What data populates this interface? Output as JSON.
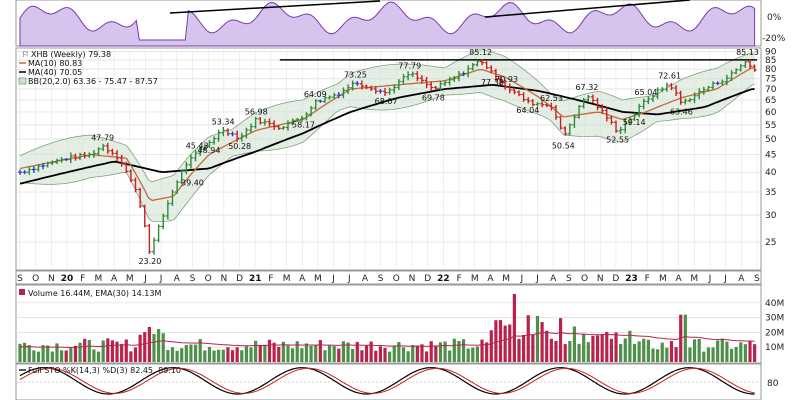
{
  "chart_data": {
    "type": "ohlc-weekly",
    "legend": {
      "title": "XHB (Weekly) 79.38",
      "ma10": "MA(10) 80.83",
      "ma40": "MA(40) 70.05",
      "bb": "BB(20,2.0) 63.36 - 75.47 - 87.57",
      "volume": "Volume 16.44M, EMA(30) 14.13M",
      "sto": "Full STO %K(14,3) %D(3) 82.45, 89.10"
    },
    "price_axis": {
      "scale": "log",
      "range": [
        21,
        91
      ],
      "ticks": [
        25,
        30,
        35,
        40,
        45,
        50,
        55,
        60,
        65,
        70,
        75,
        80,
        85,
        90
      ]
    },
    "volume_axis": {
      "range": [
        0,
        50
      ],
      "ticks": [
        "10M",
        "20M",
        "30M",
        "40M"
      ],
      "tick_values": [
        10,
        20,
        30,
        40
      ]
    },
    "rsi_axis": {
      "ticks": [
        "0%",
        "-20%"
      ]
    },
    "sto_axis": {
      "ticks": [
        "80"
      ]
    },
    "x_labels": [
      "S",
      "O",
      "N",
      "20",
      "F",
      "M",
      "A",
      "M",
      "J",
      "J",
      "A",
      "S",
      "O",
      "N",
      "D",
      "21",
      "F",
      "M",
      "A",
      "M",
      "J",
      "J",
      "A",
      "S",
      "O",
      "N",
      "D",
      "22",
      "F",
      "M",
      "A",
      "M",
      "J",
      "J",
      "A",
      "S",
      "O",
      "N",
      "D",
      "23",
      "F",
      "M",
      "A",
      "M",
      "J",
      "J",
      "A",
      "S"
    ],
    "x_label_is_year": [
      false,
      false,
      false,
      true,
      false,
      false,
      false,
      false,
      false,
      false,
      false,
      false,
      false,
      false,
      false,
      true,
      false,
      false,
      false,
      false,
      false,
      false,
      false,
      false,
      false,
      false,
      false,
      true,
      false,
      false,
      false,
      false,
      false,
      false,
      false,
      false,
      false,
      false,
      false,
      true,
      false,
      false,
      false,
      false,
      false,
      false,
      false,
      false
    ],
    "anchors": [
      {
        "m": 0,
        "v": 40
      },
      {
        "m": 2,
        "v": 44
      },
      {
        "m": 3,
        "v": 45
      },
      {
        "m": 3.5,
        "v": 47.79
      },
      {
        "m": 4.2,
        "v": 44
      },
      {
        "m": 5,
        "v": 34
      },
      {
        "m": 5.5,
        "v": 23.2
      },
      {
        "m": 6,
        "v": 29
      },
      {
        "m": 6.6,
        "v": 37
      },
      {
        "m": 7,
        "v": 42
      },
      {
        "m": 7.5,
        "v": 45.43
      },
      {
        "m": 8,
        "v": 48.94
      },
      {
        "m": 8.6,
        "v": 53.34
      },
      {
        "m": 9.3,
        "v": 50.28
      },
      {
        "m": 10,
        "v": 56.98
      },
      {
        "m": 11,
        "v": 54
      },
      {
        "m": 12,
        "v": 58.17
      },
      {
        "m": 12.5,
        "v": 64.09
      },
      {
        "m": 13.5,
        "v": 68
      },
      {
        "m": 14.2,
        "v": 73.25
      },
      {
        "m": 15.5,
        "v": 68.07
      },
      {
        "m": 16.5,
        "v": 77.79
      },
      {
        "m": 17.5,
        "v": 69.78
      },
      {
        "m": 18.5,
        "v": 76
      },
      {
        "m": 19.5,
        "v": 85.12
      },
      {
        "m": 20,
        "v": 77.38
      },
      {
        "m": 20.6,
        "v": 70.93
      },
      {
        "m": 21.5,
        "v": 64.04
      },
      {
        "m": 22.5,
        "v": 62.53
      },
      {
        "m": 23,
        "v": 50.54
      },
      {
        "m": 24,
        "v": 67.32
      },
      {
        "m": 25.3,
        "v": 52.55
      },
      {
        "m": 26,
        "v": 59.14
      },
      {
        "m": 26.5,
        "v": 65.04
      },
      {
        "m": 27.5,
        "v": 72.61
      },
      {
        "m": 28,
        "v": 63.46
      },
      {
        "m": 29,
        "v": 70
      },
      {
        "m": 30,
        "v": 76
      },
      {
        "m": 30.8,
        "v": 85.13
      },
      {
        "m": 31,
        "v": 79.38
      }
    ],
    "ma10_anchors": [
      {
        "m": 0,
        "v": 41
      },
      {
        "m": 3,
        "v": 45
      },
      {
        "m": 4.5,
        "v": 44
      },
      {
        "m": 5.5,
        "v": 33
      },
      {
        "m": 6.5,
        "v": 34
      },
      {
        "m": 8,
        "v": 45
      },
      {
        "m": 10,
        "v": 53
      },
      {
        "m": 12,
        "v": 57
      },
      {
        "m": 14,
        "v": 70
      },
      {
        "m": 16,
        "v": 72
      },
      {
        "m": 18,
        "v": 74
      },
      {
        "m": 19.5,
        "v": 80
      },
      {
        "m": 20.5,
        "v": 76
      },
      {
        "m": 22,
        "v": 66
      },
      {
        "m": 23,
        "v": 58
      },
      {
        "m": 24.5,
        "v": 60
      },
      {
        "m": 25.5,
        "v": 57
      },
      {
        "m": 26.5,
        "v": 60
      },
      {
        "m": 28,
        "v": 66
      },
      {
        "m": 29.5,
        "v": 70
      },
      {
        "m": 31,
        "v": 80.83
      }
    ],
    "ma40_anchors": [
      {
        "m": 0,
        "v": 37
      },
      {
        "m": 4,
        "v": 43
      },
      {
        "m": 6,
        "v": 40
      },
      {
        "m": 8,
        "v": 41
      },
      {
        "m": 10,
        "v": 46
      },
      {
        "m": 12,
        "v": 52
      },
      {
        "m": 14,
        "v": 60
      },
      {
        "m": 16,
        "v": 66
      },
      {
        "m": 18,
        "v": 70
      },
      {
        "m": 20,
        "v": 72
      },
      {
        "m": 22,
        "v": 69
      },
      {
        "m": 24,
        "v": 64
      },
      {
        "m": 25.5,
        "v": 60
      },
      {
        "m": 27,
        "v": 59
      },
      {
        "m": 29,
        "v": 62
      },
      {
        "m": 31,
        "v": 70.05
      }
    ],
    "annotations": [
      {
        "text": "47.79",
        "m": 3.5,
        "v": 47.79,
        "pos": "above"
      },
      {
        "text": "23.20",
        "m": 5.5,
        "v": 23.2,
        "pos": "below"
      },
      {
        "text": "45.43",
        "m": 7.5,
        "v": 45.43,
        "pos": "above"
      },
      {
        "text": "39.40",
        "m": 7.3,
        "v": 39.4,
        "pos": "below"
      },
      {
        "text": "53.34",
        "m": 8.6,
        "v": 53.34,
        "pos": "above"
      },
      {
        "text": "48.94",
        "m": 8.0,
        "v": 48.94,
        "pos": "below"
      },
      {
        "text": "56.98",
        "m": 10.0,
        "v": 56.98,
        "pos": "above"
      },
      {
        "text": "50.28",
        "m": 9.3,
        "v": 50.28,
        "pos": "below"
      },
      {
        "text": "64.09",
        "m": 12.5,
        "v": 64.09,
        "pos": "above"
      },
      {
        "text": "58.17",
        "m": 12.0,
        "v": 58.17,
        "pos": "below"
      },
      {
        "text": "73.25",
        "m": 14.2,
        "v": 73.25,
        "pos": "above"
      },
      {
        "text": "68.07",
        "m": 15.5,
        "v": 68.07,
        "pos": "below"
      },
      {
        "text": "77.79",
        "m": 16.5,
        "v": 77.79,
        "pos": "above"
      },
      {
        "text": "69.78",
        "m": 17.5,
        "v": 69.78,
        "pos": "below"
      },
      {
        "text": "85.12",
        "m": 19.5,
        "v": 85.12,
        "pos": "above"
      },
      {
        "text": "77.38",
        "m": 20.0,
        "v": 77.38,
        "pos": "below"
      },
      {
        "text": "70.93",
        "m": 20.6,
        "v": 70.93,
        "pos": "above"
      },
      {
        "text": "64.04",
        "m": 21.5,
        "v": 64.04,
        "pos": "below"
      },
      {
        "text": "62.53",
        "m": 22.5,
        "v": 62.53,
        "pos": "above"
      },
      {
        "text": "50.54",
        "m": 23.0,
        "v": 50.54,
        "pos": "below"
      },
      {
        "text": "67.32",
        "m": 24.0,
        "v": 67.32,
        "pos": "above"
      },
      {
        "text": "52.55",
        "m": 25.3,
        "v": 52.55,
        "pos": "below"
      },
      {
        "text": "65.04",
        "m": 26.5,
        "v": 65.04,
        "pos": "above"
      },
      {
        "text": "59.14",
        "m": 26.0,
        "v": 59.14,
        "pos": "below"
      },
      {
        "text": "72.61",
        "m": 27.5,
        "v": 72.61,
        "pos": "above"
      },
      {
        "text": "63.46",
        "m": 28.0,
        "v": 63.46,
        "pos": "below"
      },
      {
        "text": "85.13",
        "m": 30.8,
        "v": 85.13,
        "pos": "above"
      }
    ],
    "resistance_line": {
      "m_start": 11,
      "m_end": 31.2,
      "v": 85.12
    },
    "rsi_trendlines": [
      {
        "m1": 10,
        "y1": 0.1,
        "m2": 23,
        "y2": 0.0
      },
      {
        "m1": 29.8,
        "y1": 0.95,
        "m2": 39.2,
        "y2": 0.5
      }
    ],
    "colors": {
      "up": "#2e8b3a",
      "down": "#c82020",
      "neutral": "#2b3fc9",
      "ma10": "#c06c3a",
      "ma40": "#000000",
      "bb": "#7aa47a",
      "bbfill": "#cfe0cf",
      "vol_up": "#4e8f4a",
      "vol_down": "#b8234b",
      "rsi_fill": "#d6c4ee",
      "rsi_line": "#7a3aa8"
    }
  }
}
